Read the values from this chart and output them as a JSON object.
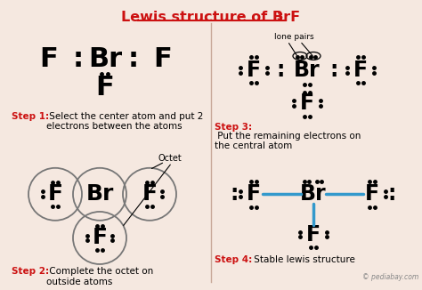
{
  "bg_color": "#f5e8e0",
  "divider_color": "#c8a898",
  "red_color": "#cc1111",
  "blue_color": "#3399cc",
  "title_text1": "Lewis structure of BrF",
  "title_sub": "3",
  "step1_label": "Step 1:",
  "step1_text": " Select the center atom and put 2\nelectrons between the atoms",
  "step2_label": "Step 2:",
  "step2_text": " Complete the octet on\noutside atoms",
  "step3_label": "Step 3:",
  "step3_text": " Put the remaining electrons on\nthe central atom",
  "step4_label": "Step 4:",
  "step4_text": " Stable lewis structure",
  "lone_pairs_label": "lone pairs",
  "octet_label": "Octet",
  "watermark": "© pediabay.com"
}
